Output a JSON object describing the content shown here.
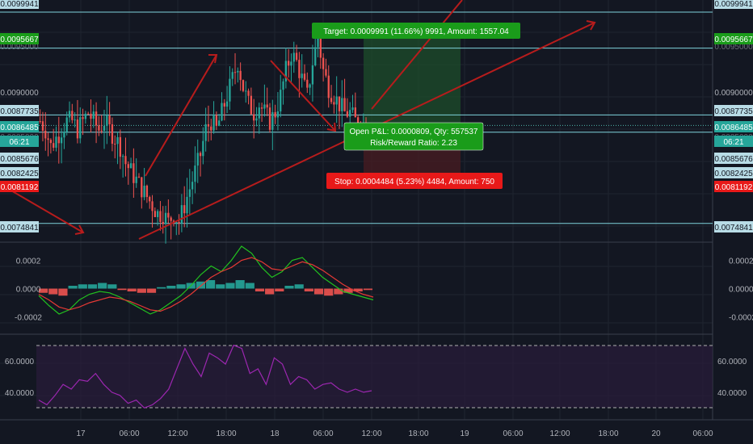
{
  "colors": {
    "background": "#131722",
    "grid": "#1f2430",
    "up": "#26a69a",
    "down": "#ef5350",
    "hline": "#7fd3dc",
    "current": "#4db6ac",
    "drawing": "#b71c1c",
    "target_zone": "#1e4d2b",
    "stop_zone": "#4a1c22",
    "label_green": "#1a9c1a",
    "label_red": "#e81919",
    "macd_line": "#22c11f",
    "signal_line": "#e53935",
    "rsi": "#9c27b0",
    "rsi_band": "#2a1d3a"
  },
  "price_axis": {
    "left_labels": [
      "0.0099941",
      "0.0095667",
      "0.0090000",
      "0.0087735",
      "0.0086485",
      "06:21",
      "0.0085676",
      "0.0082425",
      "0.0081192",
      "0.0074841"
    ],
    "right_labels": [
      "0.0099941",
      "0.0095667",
      "0.0090000",
      "0.0087735",
      "0.0086485",
      "06:21",
      "0.0085676",
      "0.0082425",
      "0.0081192",
      "0.0074841"
    ],
    "partial_labels": [
      "0.0095000",
      "0.0085000"
    ]
  },
  "time_axis": [
    "17",
    "06:00",
    "12:00",
    "18:00",
    "18",
    "06:00",
    "12:00",
    "18:00",
    "19",
    "06:00",
    "12:00",
    "18:00",
    "20",
    "06:00"
  ],
  "position": {
    "target_text": "Target: 0.0009991 (11.66%) 9991, Amount: 1557.04",
    "open_pnl_text": "Open P&L: 0.0000809, Qty: 557537",
    "risk_reward_text": "Risk/Reward Ratio: 2.23",
    "stop_text": "Stop: 0.0004484 (5.23%) 4484, Amount: 750"
  },
  "macd_axis": [
    "0.0002",
    "0.0000",
    "-0.0002"
  ],
  "rsi_axis": [
    "60.0000",
    "40.0000"
  ],
  "chart_data": [
    {
      "type": "candlestick",
      "series": "price",
      "ylim": [
        0.0073,
        0.0101
      ],
      "horizontal_levels": [
        0.0099941,
        0.0095667,
        0.0087735,
        0.0086485,
        0.0085676,
        0.0074841
      ],
      "position_entry": 0.0086485,
      "position_target": 0.0095667,
      "position_stop": 0.0081192,
      "close_path": [
        0.0087,
        0.0086,
        0.0084,
        0.0085,
        0.0086,
        0.0087,
        0.0087,
        0.0086,
        0.0087,
        0.0088,
        0.0087,
        0.0086,
        0.0087,
        0.0086,
        0.0085,
        0.0084,
        0.0082,
        0.0081,
        0.008,
        0.0079,
        0.0078,
        0.0077,
        0.0076,
        0.0076,
        0.0075,
        0.0076,
        0.0075,
        0.0077,
        0.0079,
        0.0081,
        0.0083,
        0.0086,
        0.0087,
        0.0086,
        0.0088,
        0.009,
        0.0092,
        0.0094,
        0.0091,
        0.0089,
        0.0088,
        0.0089,
        0.0088,
        0.0087,
        0.0088,
        0.009,
        0.0093,
        0.0095,
        0.0094,
        0.0092,
        0.009,
        0.0094,
        0.0097,
        0.0093,
        0.0091,
        0.009,
        0.0089,
        0.0088,
        0.0088,
        0.0087,
        0.0087,
        0.0086
      ],
      "visible_x_fraction_end": 0.49
    },
    {
      "type": "macd",
      "ylim": [
        -0.0003,
        0.0003
      ],
      "macd": [
        -5e-05,
        -0.00012,
        -0.00018,
        -0.00015,
        -8e-05,
        -4e-05,
        -2e-05,
        -3e-05,
        -6e-05,
        -0.0001,
        -0.00014,
        -0.00018,
        -0.00015,
        -0.0001,
        -5e-05,
        2e-05,
        0.0001,
        0.00016,
        0.00012,
        0.0002,
        0.0003,
        0.00025,
        0.00015,
        8e-05,
        0.00012,
        0.0002,
        0.00022,
        0.00015,
        8e-05,
        3e-05,
        -2e-05,
        -4e-05,
        -6e-05,
        -8e-05
      ],
      "signal": [
        -4e-05,
        -8e-05,
        -0.00013,
        -0.00015,
        -0.00013,
        -0.0001,
        -8e-05,
        -6e-05,
        -7e-05,
        -9e-05,
        -0.00012,
        -0.00015,
        -0.00016,
        -0.00013,
        -9e-05,
        -4e-05,
        2e-05,
        8e-05,
        0.00012,
        0.00015,
        0.0002,
        0.00022,
        0.00019,
        0.00014,
        0.00013,
        0.00016,
        0.00019,
        0.00017,
        0.00013,
        8e-05,
        3e-05,
        -1e-05,
        -4e-05,
        -6e-05
      ],
      "histogram": [
        -3e-05,
        -4e-05,
        -5e-05,
        2e-05,
        3e-05,
        3e-05,
        4e-05,
        3e-05,
        -1e-05,
        -2e-05,
        -3e-05,
        -3e-05,
        1e-05,
        2e-05,
        3e-05,
        4e-05,
        5e-05,
        6e-05,
        3e-05,
        4e-05,
        6e-05,
        4e-05,
        -2e-05,
        -4e-05,
        -2e-05,
        2e-05,
        3e-05,
        -2e-05,
        -4e-05,
        -5e-05,
        -4e-05,
        -3e-05,
        -2e-05,
        -1e-05
      ]
    },
    {
      "type": "line",
      "series": "rsi",
      "ylim": [
        25,
        75
      ],
      "upper_band": 70,
      "lower_band": 30,
      "values": [
        35,
        32,
        38,
        45,
        42,
        48,
        47,
        52,
        45,
        40,
        38,
        33,
        35,
        30,
        32,
        36,
        42,
        55,
        68,
        58,
        50,
        65,
        62,
        58,
        70,
        68,
        52,
        55,
        45,
        62,
        58,
        45,
        50,
        48,
        42,
        45,
        46,
        42,
        40,
        42,
        40,
        41
      ]
    }
  ]
}
